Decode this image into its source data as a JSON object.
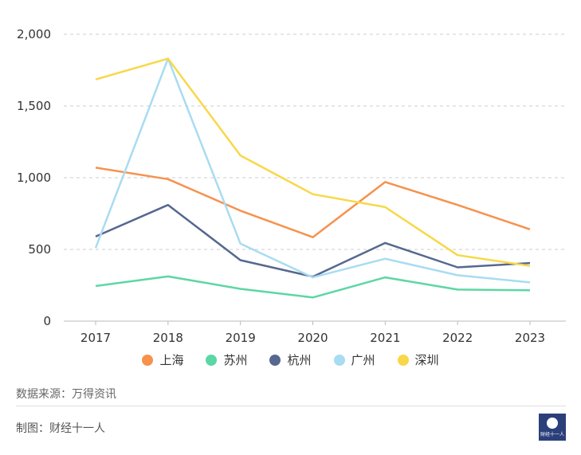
{
  "chart_data": {
    "type": "line",
    "categories": [
      "2017",
      "2018",
      "2019",
      "2020",
      "2021",
      "2022",
      "2023"
    ],
    "ylim": [
      0,
      2000
    ],
    "yticks": [
      0,
      500,
      1000,
      1500,
      2000
    ],
    "ytick_labels": [
      "0",
      "500",
      "1,000",
      "1,500",
      "2,000"
    ],
    "grid": true,
    "legend_position": "bottom-center",
    "series": [
      {
        "name": "上海",
        "color": "#f7914d",
        "values": [
          1070,
          990,
          770,
          585,
          970,
          810,
          640
        ]
      },
      {
        "name": "苏州",
        "color": "#5dd6a5",
        "values": [
          245,
          312,
          225,
          165,
          305,
          220,
          215
        ]
      },
      {
        "name": "杭州",
        "color": "#56688f",
        "values": [
          590,
          810,
          425,
          310,
          545,
          375,
          405
        ]
      },
      {
        "name": "广州",
        "color": "#a8dcf2",
        "values": [
          510,
          1830,
          540,
          305,
          435,
          320,
          270
        ]
      },
      {
        "name": "深圳",
        "color": "#f8d849",
        "values": [
          1685,
          1830,
          1155,
          885,
          795,
          460,
          385
        ]
      }
    ]
  },
  "footer": {
    "source": "数据来源：万得资讯",
    "credit": "制图：财经十一人",
    "logo_text": "财经十一人"
  }
}
